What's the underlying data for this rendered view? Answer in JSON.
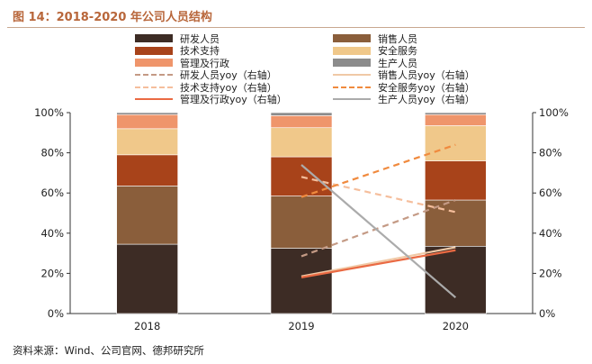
{
  "title": "图 14：2018-2020 年公司人员结构",
  "source": "资料来源：Wind、公司官网、德邦研究所",
  "colors": {
    "研发人员": "#3d2c25",
    "销售人员": "#8a5e3b",
    "技术支持": "#a8431a",
    "安全服务": "#f0c88a",
    "管理及行政": "#ef956b",
    "生产人员": "#8c8c8c",
    "研发人员yoy": "#c49a85",
    "销售人员yoy": "#f0c9a6",
    "技术支持yoy": "#f5be9c",
    "安全服务yoy": "#f08a3e",
    "管理及行政yoy": "#ea6a43",
    "生产人员yoy": "#ababab",
    "title": "#b8663a"
  },
  "chart_data": {
    "type": "bar",
    "stacked": true,
    "categories": [
      "2018",
      "2019",
      "2020"
    ],
    "y_left": {
      "min": 0,
      "max": 100,
      "ticks": [
        "0%",
        "20%",
        "40%",
        "60%",
        "80%",
        "100%"
      ]
    },
    "y_right": {
      "min": 0,
      "max": 100,
      "ticks": [
        "0%",
        "20%",
        "40%",
        "60%",
        "80%",
        "100%"
      ]
    },
    "series": [
      {
        "name": "研发人员",
        "values": [
          34.5,
          32.5,
          33.5
        ]
      },
      {
        "name": "销售人员",
        "values": [
          29,
          26,
          23
        ]
      },
      {
        "name": "技术支持",
        "values": [
          15.5,
          19.5,
          19.5
        ]
      },
      {
        "name": "安全服务",
        "values": [
          13,
          14.5,
          17.5
        ]
      },
      {
        "name": "管理及行政",
        "values": [
          7,
          6,
          5.5
        ]
      },
      {
        "name": "生产人员",
        "values": [
          1,
          1.5,
          1
        ]
      }
    ],
    "lines": [
      {
        "name": "研发人员yoy（右轴）",
        "style": "dashed",
        "values": [
          null,
          28.5,
          56.5
        ]
      },
      {
        "name": "销售人员yoy（右轴）",
        "style": "solid",
        "values": [
          null,
          18.5,
          33
        ]
      },
      {
        "name": "技术支持yoy（右轴）",
        "style": "dashed",
        "values": [
          null,
          68,
          50.5
        ]
      },
      {
        "name": "安全服务yoy（右轴）",
        "style": "dashed",
        "values": [
          null,
          58,
          84
        ]
      },
      {
        "name": "管理及行政yoy（右轴）",
        "style": "solid",
        "values": [
          null,
          18,
          31.5
        ]
      },
      {
        "name": "生产人员yoy（右轴）",
        "style": "solid",
        "values": [
          null,
          74,
          8
        ]
      }
    ]
  },
  "legend": [
    {
      "label": "研发人员",
      "kind": "box",
      "color_key": "研发人员"
    },
    {
      "label": "销售人员",
      "kind": "box",
      "color_key": "销售人员"
    },
    {
      "label": "技术支持",
      "kind": "box",
      "color_key": "技术支持"
    },
    {
      "label": "安全服务",
      "kind": "box",
      "color_key": "安全服务"
    },
    {
      "label": "管理及行政",
      "kind": "box",
      "color_key": "管理及行政"
    },
    {
      "label": "生产人员",
      "kind": "box",
      "color_key": "生产人员"
    },
    {
      "label": "研发人员yoy（右轴）",
      "kind": "dashed",
      "color_key": "研发人员yoy"
    },
    {
      "label": "销售人员yoy（右轴）",
      "kind": "solid",
      "color_key": "销售人员yoy"
    },
    {
      "label": "技术支持yoy（右轴）",
      "kind": "dashed",
      "color_key": "技术支持yoy"
    },
    {
      "label": "安全服务yoy（右轴）",
      "kind": "dashed",
      "color_key": "安全服务yoy"
    },
    {
      "label": "管理及行政yoy（右轴）",
      "kind": "solid",
      "color_key": "管理及行政yoy"
    },
    {
      "label": "生产人员yoy（右轴）",
      "kind": "solid",
      "color_key": "生产人员yoy"
    }
  ]
}
